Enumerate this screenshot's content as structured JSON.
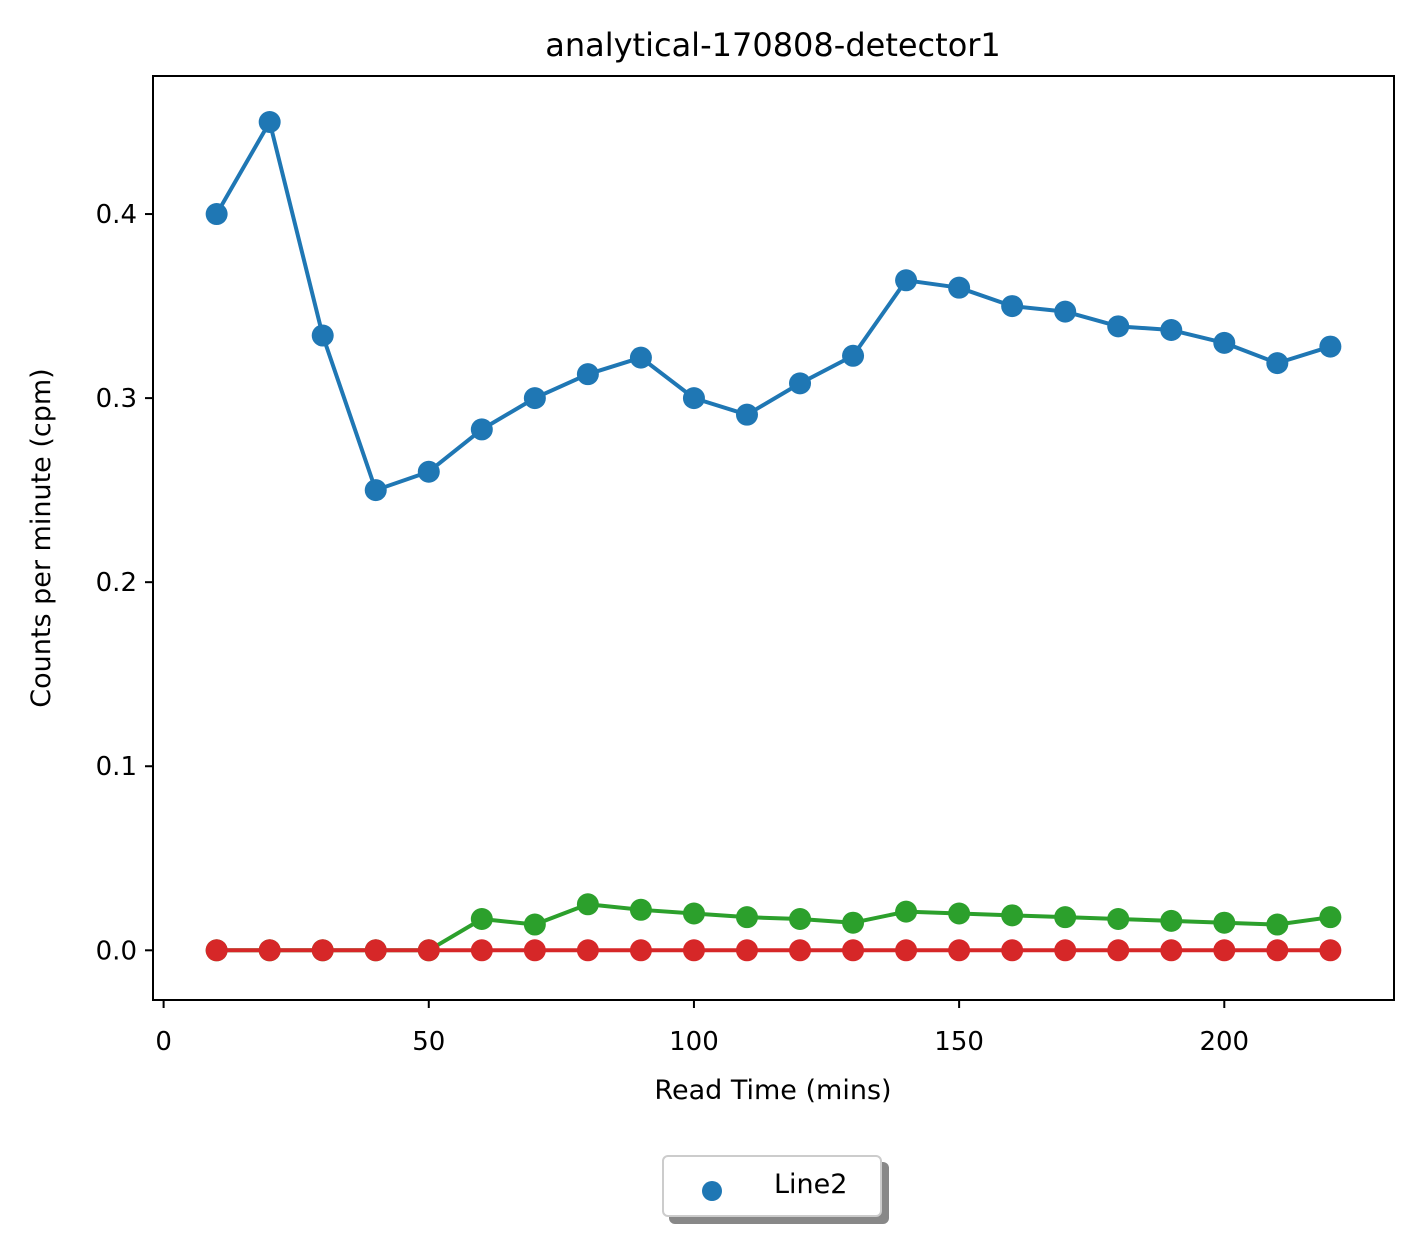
{
  "chart_data": {
    "type": "line",
    "title": "analytical-170808-detector1",
    "xlabel": "Read Time (mins)",
    "ylabel": "Counts per minute (cpm)",
    "xlim": [
      -2,
      232
    ],
    "ylim": [
      -0.027,
      0.475
    ],
    "xticks": [
      0,
      50,
      100,
      150,
      200
    ],
    "yticks": [
      0.0,
      0.1,
      0.2,
      0.3,
      0.4
    ],
    "ytick_labels": [
      "0.0",
      "0.1",
      "0.2",
      "0.3",
      "0.4"
    ],
    "x": [
      10,
      20,
      30,
      40,
      50,
      60,
      70,
      80,
      90,
      100,
      110,
      120,
      130,
      140,
      150,
      160,
      170,
      180,
      190,
      200,
      210,
      220
    ],
    "series": [
      {
        "color": "#1f77b4",
        "values": [
          0.4,
          0.45,
          0.334,
          0.25,
          0.26,
          0.283,
          0.3,
          0.313,
          0.322,
          0.3,
          0.291,
          0.308,
          0.323,
          0.364,
          0.36,
          0.35,
          0.347,
          0.339,
          0.337,
          0.33,
          0.319,
          0.328
        ]
      },
      {
        "color": "#2ca02c",
        "values": [
          0.0,
          0.0,
          0.0,
          0.0,
          0.0,
          0.017,
          0.014,
          0.025,
          0.022,
          0.02,
          0.018,
          0.017,
          0.015,
          0.021,
          0.02,
          0.019,
          0.018,
          0.017,
          0.016,
          0.015,
          0.014,
          0.018
        ]
      },
      {
        "color": "#d62728",
        "values": [
          0.0,
          0.0,
          0.0,
          0.0,
          0.0,
          0.0,
          0.0,
          0.0,
          0.0,
          0.0,
          0.0,
          0.0,
          0.0,
          0.0,
          0.0,
          0.0,
          0.0,
          0.0,
          0.0,
          0.0,
          0.0,
          0.0
        ]
      }
    ],
    "legend": {
      "placement": "below-center",
      "entries": [
        {
          "label": "Line2",
          "color": "#1f77b4",
          "marker": "circle"
        }
      ]
    },
    "grid": false
  }
}
